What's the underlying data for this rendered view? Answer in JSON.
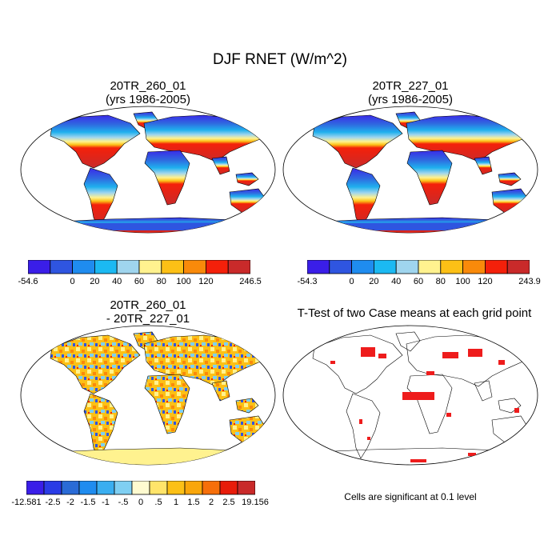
{
  "title": "DJF RNET (W/m^2)",
  "panels": [
    {
      "id": "p1",
      "title_lines": [
        "20TR_260_01",
        "(yrs 1986-2005)"
      ],
      "colorbar": {
        "colors": [
          "#3a1ee8",
          "#2f55e0",
          "#1f8cef",
          "#1bb9f2",
          "#9fd5ee",
          "#fff28f",
          "#fcc016",
          "#f98a0a",
          "#f4200a",
          "#c92a2a"
        ],
        "labels": [
          "-54.6",
          "0",
          "20",
          "40",
          "60",
          "80",
          "100",
          "120",
          "246.5"
        ]
      }
    },
    {
      "id": "p2",
      "title_lines": [
        "20TR_227_01",
        "(yrs 1986-2005)"
      ],
      "colorbar": {
        "colors": [
          "#3a1ee8",
          "#2f55e0",
          "#1f8cef",
          "#1bb9f2",
          "#9fd5ee",
          "#fff28f",
          "#fcc016",
          "#f98a0a",
          "#f4200a",
          "#c92a2a"
        ],
        "labels": [
          "-54.3",
          "0",
          "20",
          "40",
          "60",
          "80",
          "100",
          "120",
          "243.9"
        ]
      }
    },
    {
      "id": "p3",
      "title_lines": [
        "20TR_260_01",
        "- 20TR_227_01"
      ],
      "colorbar": {
        "colors": [
          "#3a1ee8",
          "#2a3ce6",
          "#2a6bd6",
          "#1f8cef",
          "#3aaef0",
          "#7fcff2",
          "#fffbd0",
          "#ffe46a",
          "#fcc016",
          "#f9a60a",
          "#f66f0a",
          "#e81c0a",
          "#c92a2a"
        ],
        "labels": [
          "-12.581",
          "-2.5",
          "-2",
          "-1.5",
          "-1",
          "-.5",
          "0",
          ".5",
          "1",
          "1.5",
          "2",
          "2.5",
          "19.156"
        ]
      }
    },
    {
      "id": "p4",
      "title_lines": [
        "T-Test of two Case means at each grid point"
      ],
      "note": "Cells are significant at 0.1 level"
    }
  ]
}
